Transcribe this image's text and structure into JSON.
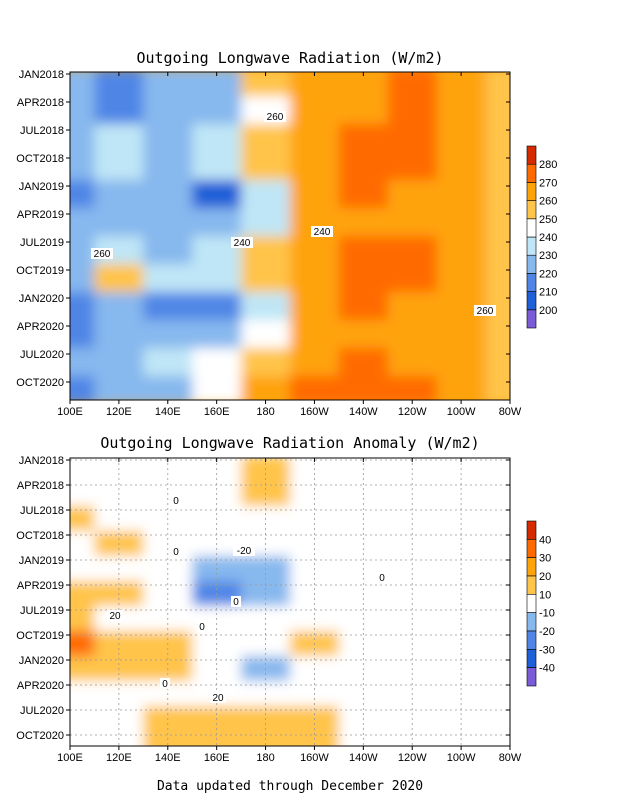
{
  "chart_data": [
    {
      "type": "heatmap",
      "title": "Outgoing Longwave Radiation (W/m2)",
      "xlabel": "",
      "ylabel": "",
      "x_ticks": [
        "100E",
        "120E",
        "140E",
        "160E",
        "180",
        "160W",
        "140W",
        "120W",
        "100W",
        "80W"
      ],
      "y_ticks": [
        "JAN2018",
        "APR2018",
        "JUL2018",
        "OCT2018",
        "JAN2019",
        "APR2019",
        "JUL2019",
        "OCT2019",
        "JAN2020",
        "APR2020",
        "JUL2020",
        "OCT2020"
      ],
      "colorbar": {
        "labels": [
          "200",
          "210",
          "220",
          "230",
          "240",
          "250",
          "260",
          "270",
          "280"
        ],
        "colors": [
          "#7a5cd6",
          "#1f5fd8",
          "#4f86e6",
          "#87b8ee",
          "#bfe6f6",
          "#ffffff",
          "#ffc44a",
          "#ffa30a",
          "#ff6a00",
          "#d62a00"
        ]
      },
      "contour_labels": [
        "260",
        "240",
        "260",
        "240",
        "260"
      ],
      "rows": [
        {
          "label": "JAN2018",
          "values": [
            224,
            214,
            220,
            228,
            250,
            260,
            268,
            272,
            264,
            256
          ]
        },
        {
          "label": "APR2018",
          "values": [
            222,
            218,
            222,
            226,
            248,
            262,
            268,
            272,
            264,
            256
          ]
        },
        {
          "label": "JUL2018",
          "values": [
            228,
            232,
            226,
            232,
            250,
            262,
            272,
            270,
            262,
            254
          ]
        },
        {
          "label": "OCT2018",
          "values": [
            220,
            234,
            228,
            230,
            254,
            262,
            272,
            270,
            262,
            254
          ]
        },
        {
          "label": "JAN2019",
          "values": [
            214,
            222,
            222,
            206,
            232,
            260,
            270,
            266,
            260,
            254
          ]
        },
        {
          "label": "APR2019",
          "values": [
            222,
            224,
            226,
            220,
            238,
            260,
            266,
            264,
            260,
            254
          ]
        },
        {
          "label": "JUL2019",
          "values": [
            228,
            236,
            228,
            236,
            250,
            264,
            270,
            270,
            264,
            256
          ]
        },
        {
          "label": "OCT2019",
          "values": [
            226,
            252,
            230,
            236,
            252,
            266,
            276,
            274,
            266,
            256
          ]
        },
        {
          "label": "JAN2020",
          "values": [
            214,
            222,
            216,
            212,
            234,
            262,
            270,
            268,
            262,
            254
          ]
        },
        {
          "label": "APR2020",
          "values": [
            218,
            224,
            226,
            224,
            244,
            264,
            268,
            266,
            264,
            254
          ]
        },
        {
          "label": "JUL2020",
          "values": [
            222,
            226,
            230,
            240,
            256,
            268,
            272,
            268,
            264,
            256
          ]
        },
        {
          "label": "OCT2020",
          "values": [
            216,
            222,
            228,
            244,
            262,
            272,
            274,
            272,
            266,
            256
          ]
        }
      ]
    },
    {
      "type": "heatmap",
      "title": "Outgoing Longwave Radiation Anomaly (W/m2)",
      "xlabel": "",
      "ylabel": "",
      "x_ticks": [
        "100E",
        "120E",
        "140E",
        "160E",
        "180",
        "160W",
        "140W",
        "120W",
        "100W",
        "80W"
      ],
      "y_ticks": [
        "JAN2018",
        "APR2018",
        "JUL2018",
        "OCT2018",
        "JAN2019",
        "APR2019",
        "JUL2019",
        "OCT2019",
        "JAN2020",
        "APR2020",
        "JUL2020",
        "OCT2020"
      ],
      "colorbar": {
        "labels": [
          "40",
          "30",
          "20",
          "10",
          "-10",
          "-20",
          "-30",
          "-40"
        ],
        "colors": [
          "#d62a00",
          "#ff6a00",
          "#ffa30a",
          "#ffc44a",
          "#ffffff",
          "#87b8ee",
          "#4f86e6",
          "#1f5fd8",
          "#7a5cd6"
        ]
      },
      "contour_labels": [
        "0",
        "0",
        "0",
        "-20",
        "0",
        "0",
        "20",
        "0",
        "20"
      ],
      "rows": [
        {
          "label": "JAN2018",
          "values": [
            0,
            0,
            0,
            0,
            12,
            6,
            0,
            0,
            0,
            0
          ]
        },
        {
          "label": "APR2018",
          "values": [
            0,
            0,
            0,
            0,
            12,
            6,
            0,
            0,
            0,
            0
          ]
        },
        {
          "label": "JUL2018",
          "values": [
            12,
            0,
            0,
            0,
            4,
            0,
            0,
            0,
            0,
            0
          ]
        },
        {
          "label": "OCT2018",
          "values": [
            0,
            12,
            0,
            -4,
            0,
            0,
            0,
            0,
            0,
            0
          ]
        },
        {
          "label": "JAN2019",
          "values": [
            0,
            0,
            0,
            -14,
            -12,
            0,
            0,
            0,
            0,
            0
          ]
        },
        {
          "label": "APR2019",
          "values": [
            12,
            12,
            0,
            -26,
            -14,
            0,
            0,
            0,
            0,
            0
          ]
        },
        {
          "label": "JUL2019",
          "values": [
            14,
            0,
            0,
            0,
            0,
            0,
            0,
            0,
            0,
            0
          ]
        },
        {
          "label": "OCT2019",
          "values": [
            30,
            16,
            14,
            0,
            -4,
            14,
            0,
            0,
            0,
            0
          ]
        },
        {
          "label": "JAN2020",
          "values": [
            14,
            12,
            12,
            -4,
            -14,
            0,
            0,
            0,
            0,
            0
          ]
        },
        {
          "label": "APR2020",
          "values": [
            0,
            0,
            0,
            0,
            0,
            0,
            0,
            0,
            0,
            0
          ]
        },
        {
          "label": "JUL2020",
          "values": [
            0,
            0,
            14,
            16,
            16,
            12,
            0,
            0,
            0,
            0
          ]
        },
        {
          "label": "OCT2020",
          "values": [
            0,
            0,
            14,
            16,
            16,
            12,
            0,
            0,
            0,
            0
          ]
        }
      ]
    }
  ],
  "footer": "Data updated through December 2020"
}
